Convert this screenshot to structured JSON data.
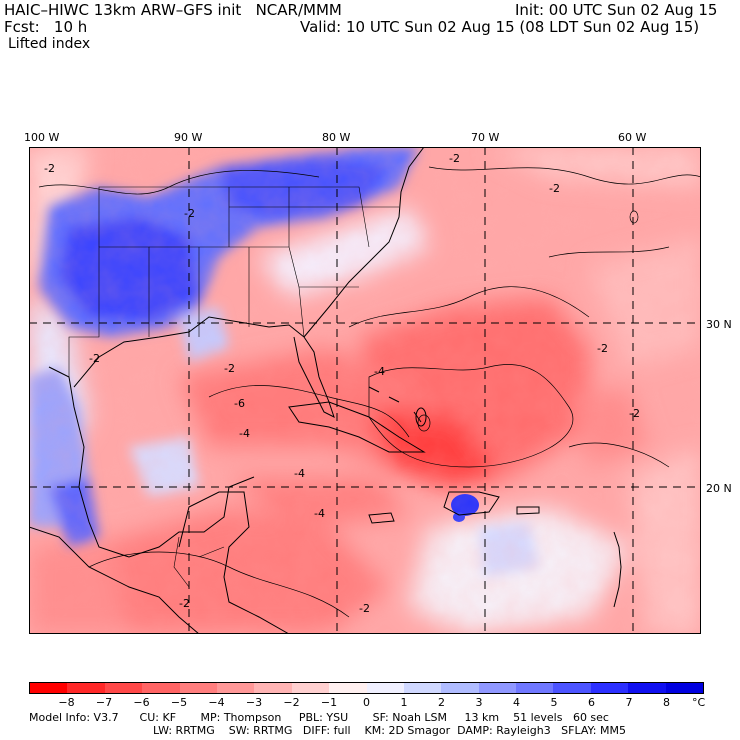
{
  "header": {
    "title_left": "HAIC–HIWC 13km ARW–GFS init   NCAR/MMM",
    "init": "Init: 00 UTC Sun 02 Aug 15",
    "fcst": "Fcst:   10 h",
    "valid": "Valid: 10 UTC Sun 02 Aug 15 (08 LDT Sun 02 Aug 15)",
    "field": "Lifted index"
  },
  "map": {
    "lon_labels": [
      "100 W",
      "90 W",
      "80 W",
      "70 W",
      "60 W"
    ],
    "lat_labels": [
      "30 N",
      "20 N"
    ],
    "contour_labels": [
      "-2",
      "-2",
      "-2",
      "-2",
      "-4",
      "-4",
      "-2",
      "-2",
      "-4",
      "-2",
      "-6",
      "-2",
      "-4",
      "-2",
      "-2"
    ],
    "palette_note": "negative values red, positive values blue"
  },
  "colorbar": {
    "tick_labels": [
      "−8",
      "−7",
      "−6",
      "−5",
      "−4",
      "−3",
      "−2",
      "−1",
      "0",
      "1",
      "2",
      "3",
      "4",
      "5",
      "6",
      "7",
      "8"
    ],
    "unit": "°C",
    "colors": [
      "#ff0000",
      "#ff2828",
      "#ff4848",
      "#ff6464",
      "#ff7e7e",
      "#ff9898",
      "#ffb4b4",
      "#ffd0d0",
      "#fff0f0",
      "#f0f0ff",
      "#d0d8ff",
      "#b0bcff",
      "#9098ff",
      "#7078ff",
      "#4c54ff",
      "#2c30ff",
      "#1010f0",
      "#0000e0"
    ]
  },
  "model_info": {
    "line1": "Model Info: V3.7      CU: KF       MP: Thompson     PBL: YSU       SF: Noah LSM     13 km    51 levels   60 sec",
    "line2": "LW: RRTMG    SW: RRTMG   DIFF: full    KM: 2D Smagor  DAMP: Rayleigh3   SFLAY: MM5"
  }
}
